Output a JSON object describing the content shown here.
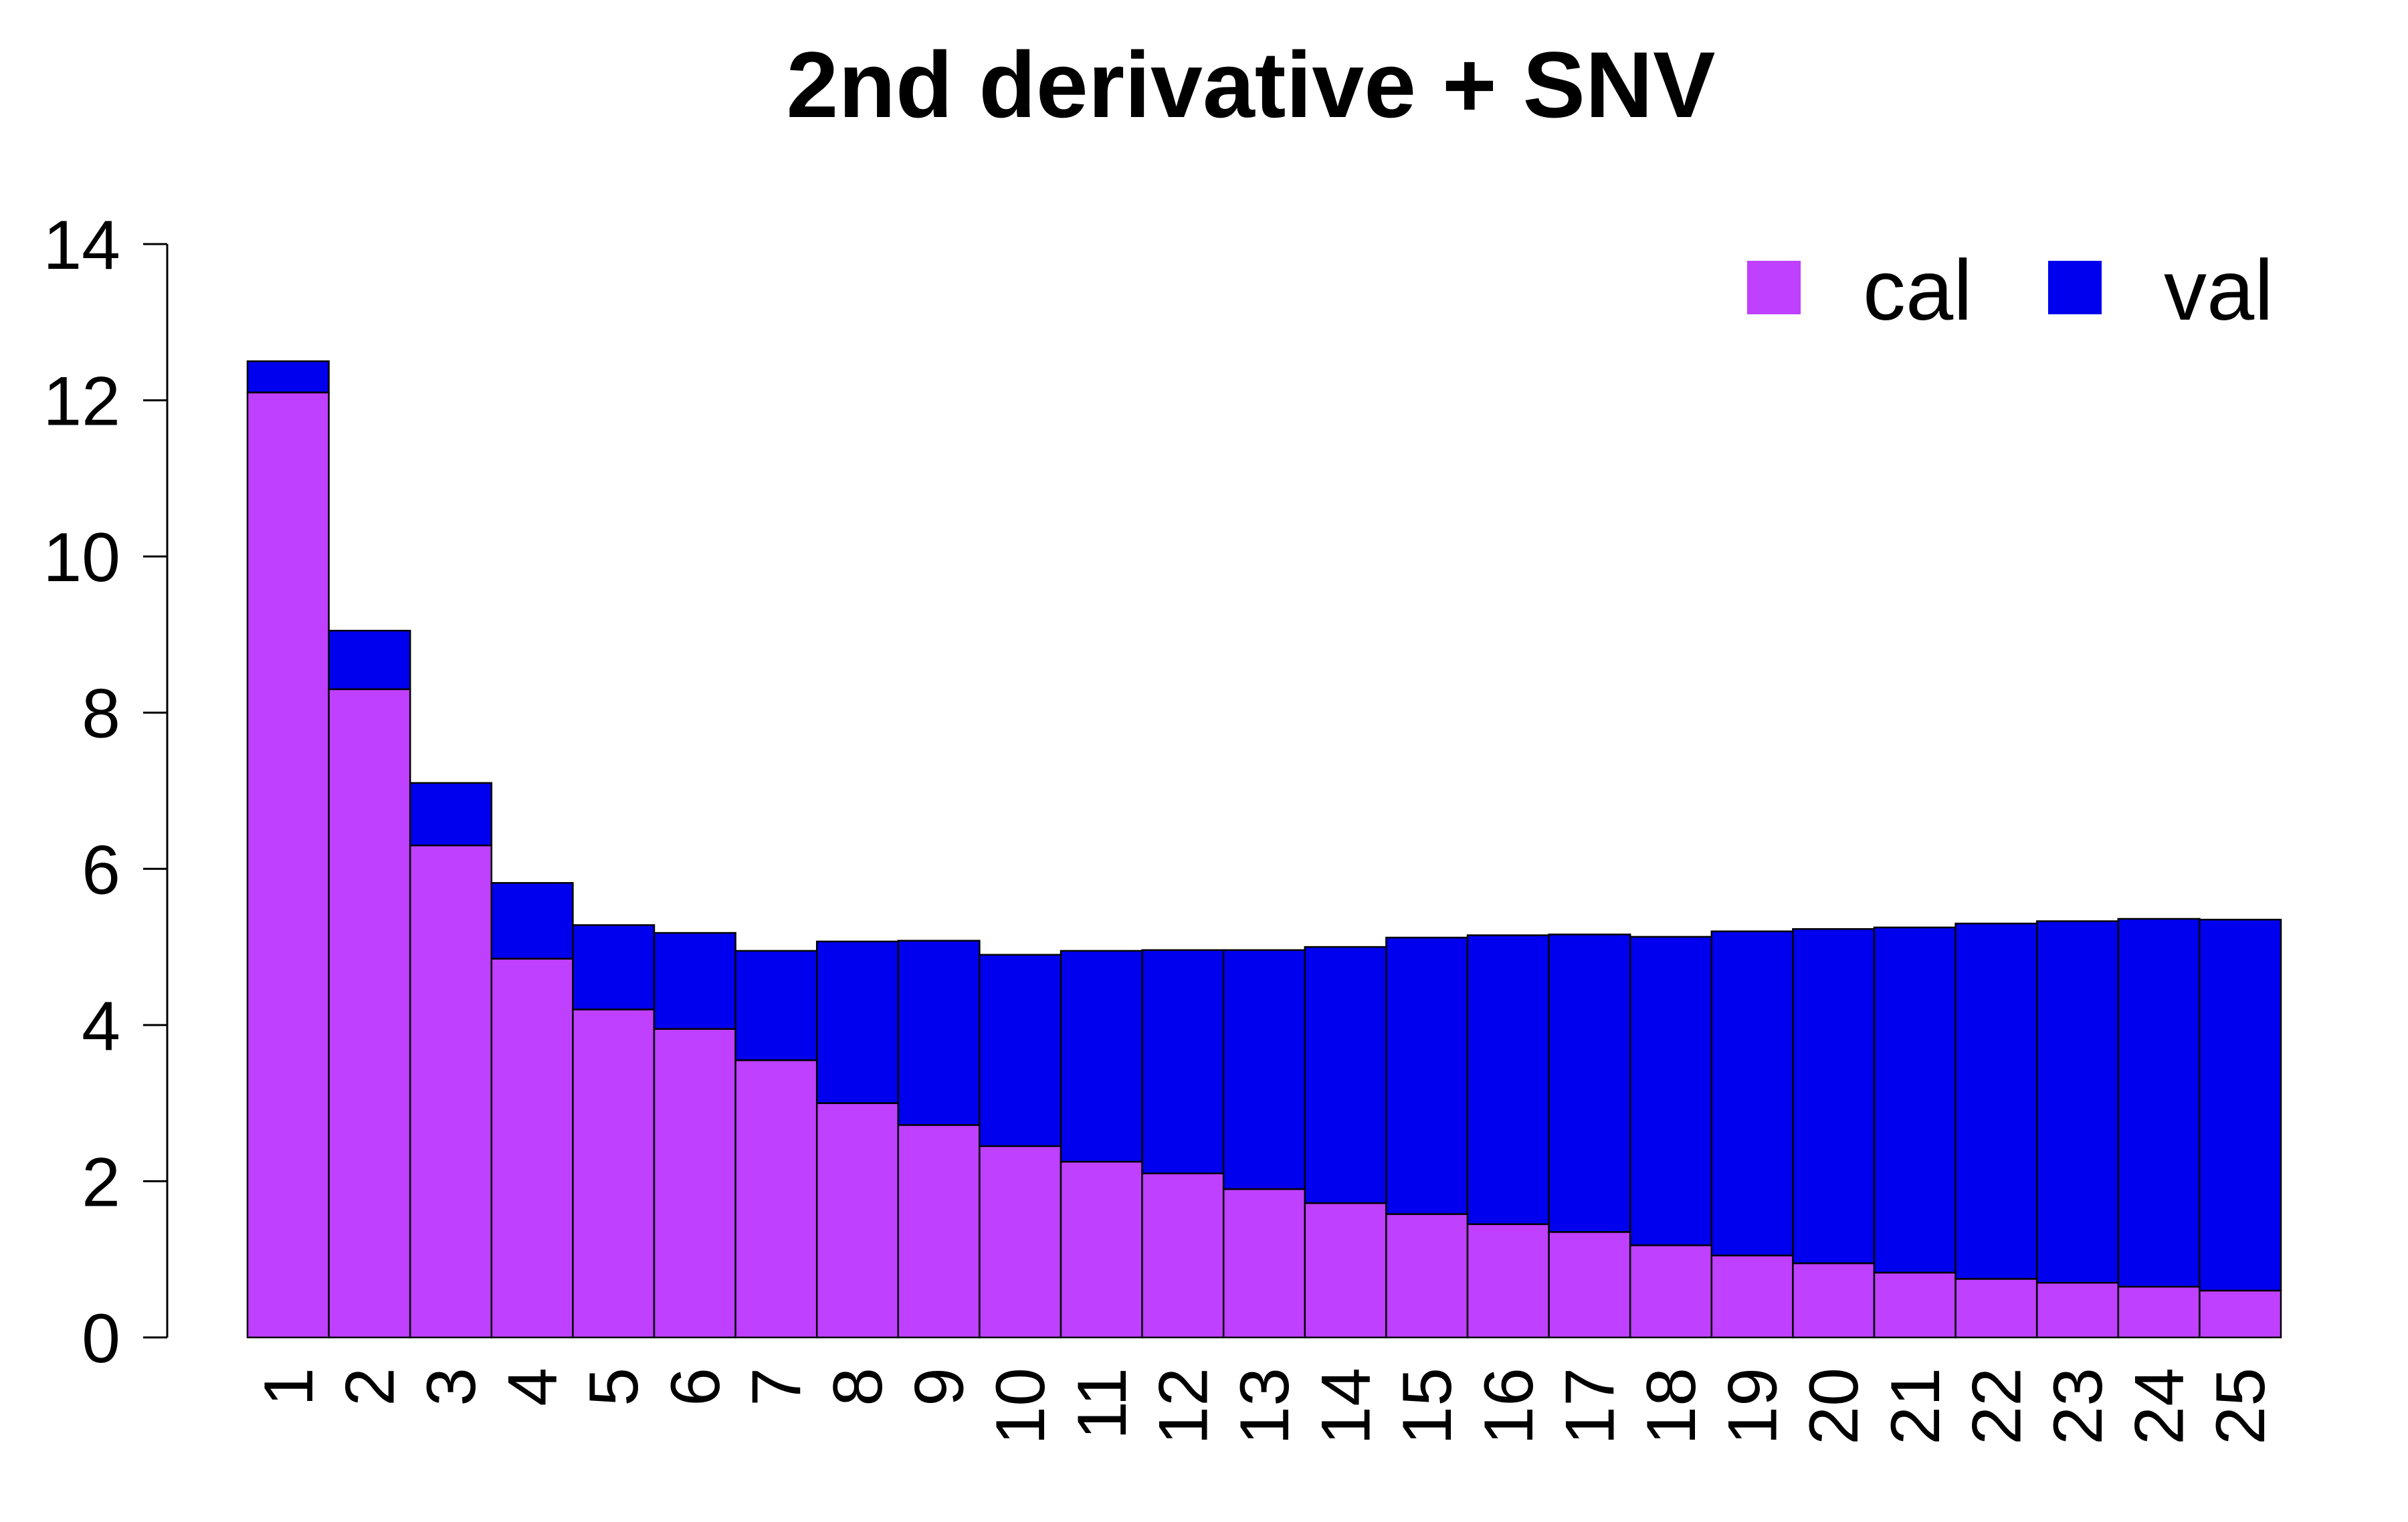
{
  "chart_data": {
    "type": "bar",
    "stacked": true,
    "title": "2nd derivative + SNV",
    "xlabel": "",
    "ylabel": "",
    "ylim": [
      0,
      14
    ],
    "yticks": [
      0,
      2,
      4,
      6,
      8,
      10,
      12,
      14
    ],
    "x_tick_labels_rotated": true,
    "categories": [
      "1",
      "2",
      "3",
      "4",
      "5",
      "6",
      "7",
      "8",
      "9",
      "10",
      "11",
      "12",
      "13",
      "14",
      "15",
      "16",
      "17",
      "18",
      "19",
      "20",
      "21",
      "22",
      "23",
      "24",
      "25"
    ],
    "series": [
      {
        "name": "cal",
        "color": "#bf40ff",
        "values": [
          12.1,
          8.3,
          6.3,
          4.85,
          4.2,
          3.95,
          3.55,
          3.0,
          2.72,
          2.45,
          2.25,
          2.1,
          1.9,
          1.72,
          1.58,
          1.45,
          1.35,
          1.18,
          1.05,
          0.95,
          0.83,
          0.75,
          0.7,
          0.65,
          0.6
        ]
      },
      {
        "name": "val",
        "color": "#0000ee",
        "values": [
          0.4,
          0.75,
          0.8,
          0.97,
          1.08,
          1.23,
          1.4,
          2.07,
          2.36,
          2.45,
          2.7,
          2.86,
          3.06,
          3.28,
          3.54,
          3.7,
          3.81,
          3.95,
          4.15,
          4.28,
          4.42,
          4.55,
          4.63,
          4.71,
          4.75
        ]
      }
    ],
    "legend": {
      "position": "top-right",
      "entries": [
        "cal",
        "val"
      ]
    },
    "grid": false
  }
}
